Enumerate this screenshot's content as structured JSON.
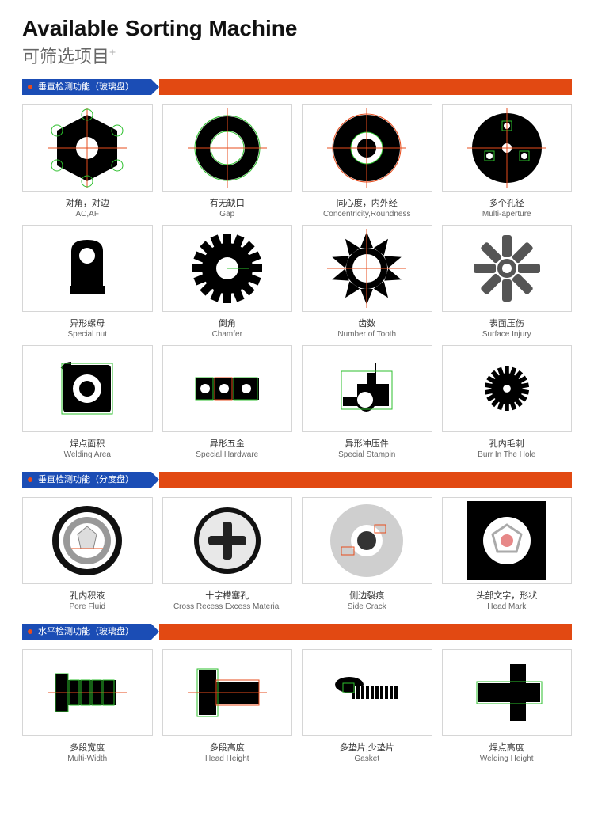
{
  "header": {
    "title_en": "Available Sorting Machine",
    "title_cn": "可筛选项目",
    "plus": "+"
  },
  "colors": {
    "accent_blue": "#1b4db5",
    "accent_orange": "#e24912",
    "dot": "#e74c1c",
    "border": "#d6d6d6",
    "overlay_green": "#2dbf2d",
    "overlay_red": "#e74c1c"
  },
  "sections": [
    {
      "label": "垂直检测功能（玻璃盘）",
      "items": [
        {
          "cn": "对角，对边",
          "en": "AC,AF",
          "icon": "hex-nut"
        },
        {
          "cn": "有无缺口",
          "en": "Gap",
          "icon": "ring"
        },
        {
          "cn": "同心度，内外经",
          "en": "Concentricity,Roundness",
          "icon": "concentric"
        },
        {
          "cn": "多个孔径",
          "en": "Multi-aperture",
          "icon": "multi-hole"
        },
        {
          "cn": "异形螺母",
          "en": "Special nut",
          "icon": "special-nut"
        },
        {
          "cn": "倒角",
          "en": "Chamfer",
          "icon": "gear-solid"
        },
        {
          "cn": "齿数",
          "en": "Number of Tooth",
          "icon": "gear-open"
        },
        {
          "cn": "表面压伤",
          "en": "Surface Injury",
          "icon": "rotor"
        },
        {
          "cn": "焊点面积",
          "en": "Welding Area",
          "icon": "square-bracket"
        },
        {
          "cn": "异形五金",
          "en": "Special Hardware",
          "icon": "hardware"
        },
        {
          "cn": "异形冲压件",
          "en": "Special Stampin",
          "icon": "stamping"
        },
        {
          "cn": "孔内毛刺",
          "en": "Burr In The Hole",
          "icon": "gear-tiny"
        }
      ]
    },
    {
      "label": "垂直检测功能（分度盘）",
      "items": [
        {
          "cn": "孔内积液",
          "en": "Pore Fluid",
          "icon": "pore"
        },
        {
          "cn": "十字槽塞孔",
          "en": "Cross Recess Excess Material",
          "icon": "phillips"
        },
        {
          "cn": "侧边裂痕",
          "en": "Side Crack",
          "icon": "side-crack"
        },
        {
          "cn": "头部文字，形状",
          "en": "Head Mark",
          "icon": "head-mark"
        }
      ]
    },
    {
      "label": "水平检测功能（玻璃盘）",
      "items": [
        {
          "cn": "多段宽度",
          "en": "Multi-Width",
          "icon": "bolt-seg"
        },
        {
          "cn": "多段高度",
          "en": "Head Height",
          "icon": "bolt-head"
        },
        {
          "cn": "多垫片,少垫片",
          "en": "Gasket",
          "icon": "gasket-bolt"
        },
        {
          "cn": "焊点高度",
          "en": "Welding Height",
          "icon": "weld-bolt"
        }
      ]
    }
  ]
}
